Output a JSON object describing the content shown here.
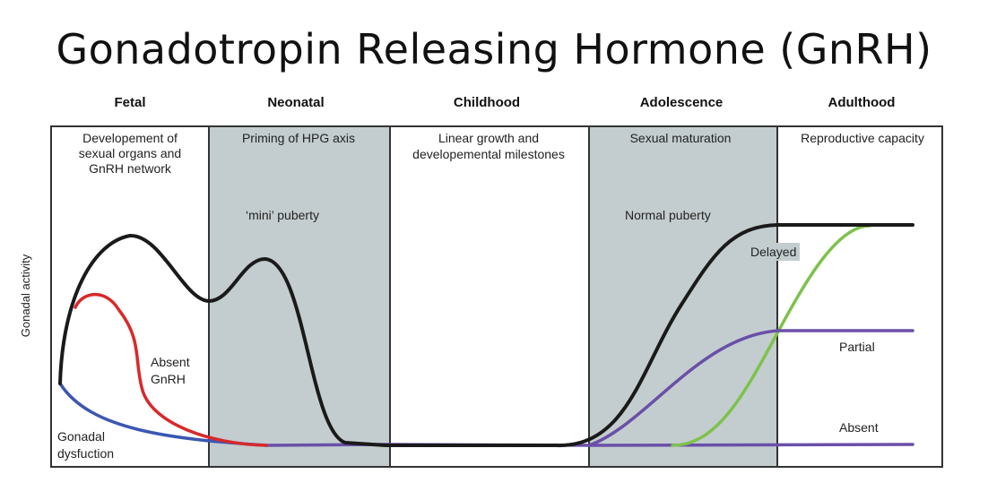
{
  "title": "Gonadotropin Releasing Hormone (GnRH)",
  "y_axis_label": "Gonadal activity",
  "stages": [
    {
      "name": "Fetal",
      "description": [
        "Developement of",
        "sexual organs and",
        "GnRH network"
      ],
      "shaded": false
    },
    {
      "name": "Neonatal",
      "description": [
        "Priming of HPG axis"
      ],
      "shaded": true
    },
    {
      "name": "Childhood",
      "description": [
        "Linear growth and",
        "developemental milestones"
      ],
      "shaded": false
    },
    {
      "name": "Adolescence",
      "description": [
        "Sexual maturation"
      ],
      "shaded": true
    },
    {
      "name": "Adulthood",
      "description": [
        "Reproductive capacity"
      ],
      "shaded": false
    }
  ],
  "annotations": {
    "mini_puberty": "‘mini’ puberty",
    "normal_puberty": "Normal puberty",
    "absent_gnrh": [
      "Absent",
      "GnRH"
    ],
    "gonadal_dysfunction": [
      "Gonadal",
      "dysfuction"
    ],
    "delayed": "Delayed",
    "partial": "Partial",
    "absent": "Absent"
  },
  "curves": {
    "normal": {
      "name": "Normal",
      "color": "#1a1a1a"
    },
    "absent_gnrh": {
      "name": "Absent GnRH",
      "color": "#d9282a"
    },
    "gonadal_dysfunction": {
      "name": "Gonadal dysfunction",
      "color": "#3b57b3"
    },
    "partial_absent": {
      "name": "Partial / Absent",
      "color": "#6a4fa8"
    },
    "delayed": {
      "name": "Delayed",
      "color": "#7dc24b"
    }
  },
  "colors": {
    "shading": "#c3cdcf",
    "border": "#333333"
  }
}
